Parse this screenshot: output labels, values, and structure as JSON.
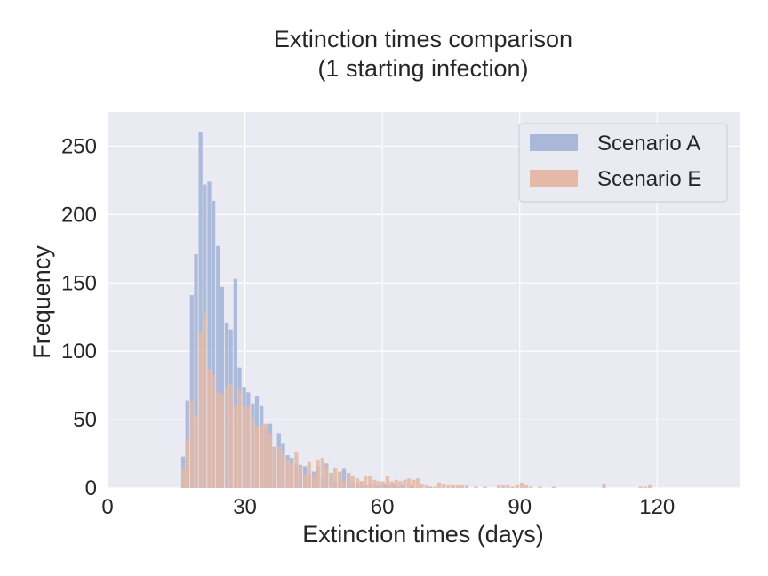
{
  "chart_data": {
    "type": "bar",
    "title_lines": [
      "Extinction times comparison",
      "(1 starting infection)"
    ],
    "xlabel": "Extinction times (days)",
    "ylabel": "Frequency",
    "xlim": [
      0,
      138
    ],
    "ylim": [
      0,
      275
    ],
    "xticks": [
      "0",
      "30",
      "60",
      "90",
      "120"
    ],
    "yticks": [
      "0",
      "50",
      "100",
      "150",
      "200",
      "250"
    ],
    "grid": true,
    "legend_position": "top-right",
    "bin_width": 0.95,
    "series": [
      {
        "name": "Scenario A",
        "color": "#a9b8d9",
        "bins": [
          [
            16.1,
            23
          ],
          [
            17.0,
            64
          ],
          [
            18.0,
            141
          ],
          [
            18.9,
            171
          ],
          [
            19.9,
            260
          ],
          [
            20.8,
            222
          ],
          [
            21.8,
            224
          ],
          [
            22.7,
            210
          ],
          [
            23.7,
            177
          ],
          [
            24.6,
            147
          ],
          [
            25.6,
            121
          ],
          [
            26.5,
            116
          ],
          [
            27.5,
            153
          ],
          [
            28.4,
            88
          ],
          [
            29.4,
            74
          ],
          [
            30.3,
            70
          ],
          [
            31.3,
            62
          ],
          [
            32.2,
            67
          ],
          [
            33.2,
            60
          ],
          [
            34.1,
            44
          ],
          [
            35.1,
            47
          ],
          [
            36.0,
            30
          ],
          [
            37.0,
            40
          ],
          [
            37.9,
            33
          ],
          [
            38.9,
            24
          ],
          [
            39.8,
            22
          ],
          [
            40.8,
            18
          ],
          [
            41.7,
            17
          ],
          [
            42.7,
            16
          ],
          [
            43.6,
            10
          ],
          [
            44.6,
            12
          ],
          [
            45.5,
            16
          ],
          [
            46.5,
            7
          ],
          [
            47.4,
            18
          ],
          [
            48.4,
            11
          ],
          [
            49.3,
            5
          ],
          [
            50.3,
            11
          ],
          [
            51.2,
            14
          ],
          [
            52.2,
            11
          ],
          [
            53.1,
            4
          ],
          [
            54.1,
            3
          ],
          [
            55.0,
            5
          ],
          [
            56.0,
            2
          ],
          [
            57.0,
            3
          ],
          [
            58.0,
            2
          ],
          [
            59.0,
            2
          ],
          [
            60.0,
            3
          ],
          [
            61.0,
            2
          ],
          [
            62.0,
            3
          ],
          [
            63.0,
            1
          ],
          [
            64.0,
            2
          ],
          [
            66.0,
            2
          ],
          [
            70.0,
            1
          ],
          [
            75.0,
            1
          ]
        ]
      },
      {
        "name": "Scenario E",
        "color": "#e4b9a7",
        "bins": [
          [
            16.1,
            15
          ],
          [
            17.0,
            35
          ],
          [
            18.0,
            64
          ],
          [
            18.9,
            53
          ],
          [
            19.9,
            114
          ],
          [
            20.8,
            128
          ],
          [
            21.8,
            87
          ],
          [
            22.7,
            83
          ],
          [
            23.7,
            70
          ],
          [
            24.6,
            69
          ],
          [
            25.6,
            74
          ],
          [
            26.5,
            76
          ],
          [
            27.5,
            60
          ],
          [
            28.4,
            72
          ],
          [
            29.4,
            60
          ],
          [
            30.3,
            60
          ],
          [
            31.3,
            51
          ],
          [
            32.2,
            45
          ],
          [
            33.2,
            46
          ],
          [
            34.1,
            47
          ],
          [
            35.1,
            40
          ],
          [
            36.0,
            30
          ],
          [
            37.0,
            30
          ],
          [
            37.9,
            25
          ],
          [
            38.9,
            21
          ],
          [
            39.8,
            18
          ],
          [
            40.8,
            26
          ],
          [
            41.7,
            16
          ],
          [
            42.7,
            10
          ],
          [
            43.6,
            19
          ],
          [
            44.6,
            8
          ],
          [
            45.5,
            20
          ],
          [
            46.5,
            22
          ],
          [
            47.4,
            16
          ],
          [
            48.4,
            10
          ],
          [
            49.3,
            15
          ],
          [
            50.3,
            12
          ],
          [
            51.2,
            5
          ],
          [
            52.2,
            11
          ],
          [
            53.1,
            9
          ],
          [
            54.1,
            7
          ],
          [
            55.0,
            5
          ],
          [
            55.9,
            9
          ],
          [
            56.9,
            9
          ],
          [
            57.9,
            6
          ],
          [
            58.8,
            5
          ],
          [
            59.7,
            5
          ],
          [
            60.7,
            9
          ],
          [
            61.6,
            5
          ],
          [
            62.6,
            6
          ],
          [
            63.5,
            5
          ],
          [
            64.5,
            6
          ],
          [
            65.4,
            7
          ],
          [
            66.4,
            6
          ],
          [
            67.3,
            7
          ],
          [
            68.2,
            3
          ],
          [
            69.2,
            2
          ],
          [
            70.1,
            1
          ],
          [
            71.1,
            1
          ],
          [
            72.0,
            4
          ],
          [
            73.0,
            3
          ],
          [
            74.0,
            2
          ],
          [
            75.0,
            2
          ],
          [
            76.0,
            2
          ],
          [
            77.0,
            2
          ],
          [
            78.0,
            2
          ],
          [
            80.0,
            1
          ],
          [
            82.0,
            1
          ],
          [
            85.0,
            2
          ],
          [
            86.0,
            2
          ],
          [
            87.0,
            2
          ],
          [
            88.0,
            1
          ],
          [
            89.0,
            2
          ],
          [
            90.0,
            4
          ],
          [
            91.0,
            2
          ],
          [
            92.0,
            1
          ],
          [
            94.0,
            1
          ],
          [
            97.0,
            1
          ],
          [
            108.0,
            3
          ],
          [
            116.0,
            1
          ],
          [
            117.0,
            1
          ],
          [
            118.0,
            2
          ]
        ]
      }
    ]
  }
}
